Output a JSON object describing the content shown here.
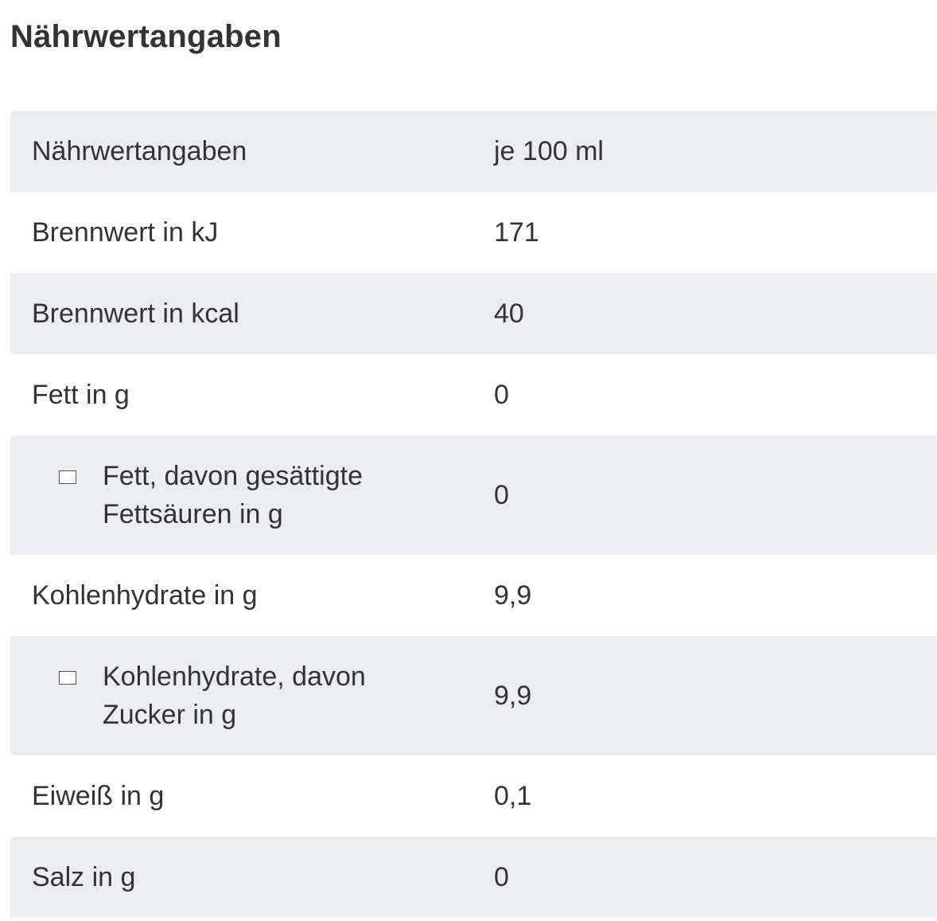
{
  "title": "Nährwertangaben",
  "table": {
    "header": {
      "label": "Nährwertangaben",
      "value": "je 100 ml"
    },
    "rows": [
      {
        "label": "Brennwert in kJ",
        "value": "171"
      },
      {
        "label": "Brennwert in kcal",
        "value": "40"
      },
      {
        "label": "Fett in g",
        "value": "0"
      },
      {
        "label": "Fett, davon gesättigte Fettsäuren in g",
        "value": "0",
        "icon": "checkbox-icon"
      },
      {
        "label": "Kohlenhydrate in g",
        "value": "9,9"
      },
      {
        "label": "Kohlenhydrate, davon Zucker in g",
        "value": "9,9",
        "icon": "checkbox-icon"
      },
      {
        "label": "Eiweiß in g",
        "value": "0,1"
      },
      {
        "label": "Salz in g",
        "value": "0"
      }
    ]
  },
  "colors": {
    "shaded_row": "#ecedf0",
    "plain_row": "#ffffff",
    "text": "#333333"
  }
}
